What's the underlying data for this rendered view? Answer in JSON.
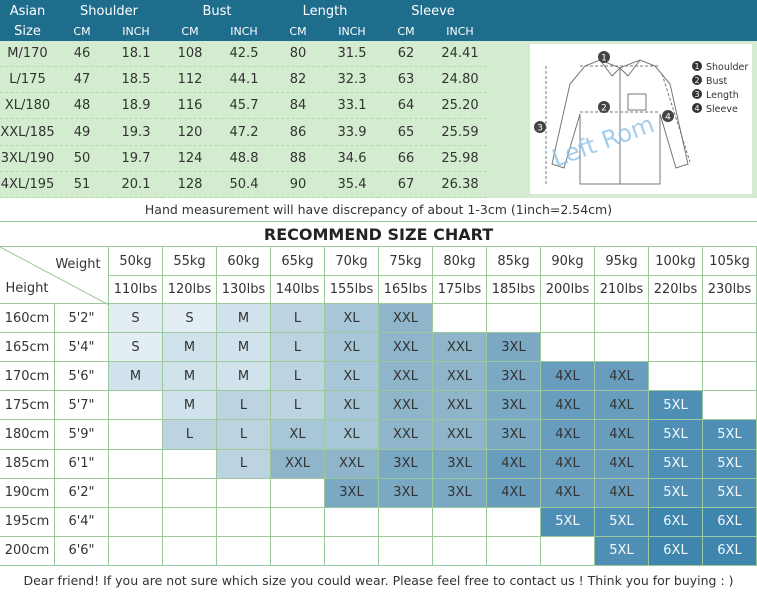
{
  "size_table": {
    "header": [
      "Asian",
      "Shoulder",
      "Bust",
      "Length",
      "Sleeve"
    ],
    "subheader": [
      "Size",
      "CM",
      "INCH",
      "CM",
      "INCH",
      "CM",
      "INCH",
      "CM",
      "INCH"
    ],
    "rows": [
      [
        "M/170",
        "46",
        "18.1",
        "108",
        "42.5",
        "80",
        "31.5",
        "62",
        "24.41"
      ],
      [
        "L/175",
        "47",
        "18.5",
        "112",
        "44.1",
        "82",
        "32.3",
        "63",
        "24.80"
      ],
      [
        "XL/180",
        "48",
        "18.9",
        "116",
        "45.7",
        "84",
        "33.1",
        "64",
        "25.20"
      ],
      [
        "XXL/185",
        "49",
        "19.3",
        "120",
        "47.2",
        "86",
        "33.9",
        "65",
        "25.59"
      ],
      [
        "3XL/190",
        "50",
        "19.7",
        "124",
        "48.8",
        "88",
        "34.6",
        "66",
        "25.98"
      ],
      [
        "4XL/195",
        "51",
        "20.1",
        "128",
        "50.4",
        "90",
        "35.4",
        "67",
        "26.38"
      ]
    ]
  },
  "diagram": {
    "markers": [
      "1",
      "2",
      "3",
      "4"
    ],
    "legend": [
      "Shoulder",
      "Bust",
      "Length",
      "Sleeve"
    ],
    "watermark": "Left Rom"
  },
  "note": "Hand measurement will have discrepancy of about 1-3cm (1inch=2.54cm)",
  "chart_title": "RECOMMEND SIZE CHART",
  "grid": {
    "weight_label": "Weight",
    "height_label": "Height",
    "kg": [
      "50kg",
      "55kg",
      "60kg",
      "65kg",
      "70kg",
      "75kg",
      "80kg",
      "85kg",
      "90kg",
      "95kg",
      "100kg",
      "105kg"
    ],
    "lbs": [
      "110lbs",
      "120lbs",
      "130lbs",
      "140lbs",
      "155lbs",
      "165lbs",
      "175lbs",
      "185lbs",
      "200lbs",
      "210lbs",
      "220lbs",
      "230lbs"
    ],
    "rows": [
      {
        "cm": "160cm",
        "ft": "5'2\"",
        "sizes": [
          "S",
          "S",
          "M",
          "L",
          "XL",
          "XXL",
          null,
          null,
          null,
          null,
          null,
          null
        ]
      },
      {
        "cm": "165cm",
        "ft": "5'4\"",
        "sizes": [
          "S",
          "M",
          "M",
          "L",
          "XL",
          "XXL",
          "XXL",
          "3XL",
          null,
          null,
          null,
          null
        ]
      },
      {
        "cm": "170cm",
        "ft": "5'6\"",
        "sizes": [
          "M",
          "M",
          "M",
          "L",
          "XL",
          "XXL",
          "XXL",
          "3XL",
          "4XL",
          "4XL",
          null,
          null
        ]
      },
      {
        "cm": "175cm",
        "ft": "5'7\"",
        "sizes": [
          null,
          "M",
          "L",
          "L",
          "XL",
          "XXL",
          "XXL",
          "3XL",
          "4XL",
          "4XL",
          "5XL",
          null
        ]
      },
      {
        "cm": "180cm",
        "ft": "5'9\"",
        "sizes": [
          null,
          "L",
          "L",
          "XL",
          "XL",
          "XXL",
          "XXL",
          "3XL",
          "4XL",
          "4XL",
          "5XL",
          "5XL"
        ]
      },
      {
        "cm": "185cm",
        "ft": "6'1\"",
        "sizes": [
          null,
          null,
          "L",
          "XXL",
          "XXL",
          "3XL",
          "3XL",
          "4XL",
          "4XL",
          "4XL",
          "5XL",
          "5XL"
        ]
      },
      {
        "cm": "190cm",
        "ft": "6'2\"",
        "sizes": [
          null,
          null,
          null,
          null,
          "3XL",
          "3XL",
          "3XL",
          "4XL",
          "4XL",
          "4XL",
          "5XL",
          "5XL"
        ]
      },
      {
        "cm": "195cm",
        "ft": "6'4\"",
        "sizes": [
          null,
          null,
          null,
          null,
          null,
          null,
          null,
          null,
          "5XL",
          "5XL",
          "6XL",
          "6XL"
        ]
      },
      {
        "cm": "200cm",
        "ft": "6'6\"",
        "sizes": [
          null,
          null,
          null,
          null,
          null,
          null,
          null,
          null,
          null,
          "5XL",
          "6XL",
          "6XL"
        ]
      }
    ]
  },
  "footer": "Dear friend! If you are not sure which size you could wear. Please feel free to contact us ! Think you for buying : )"
}
